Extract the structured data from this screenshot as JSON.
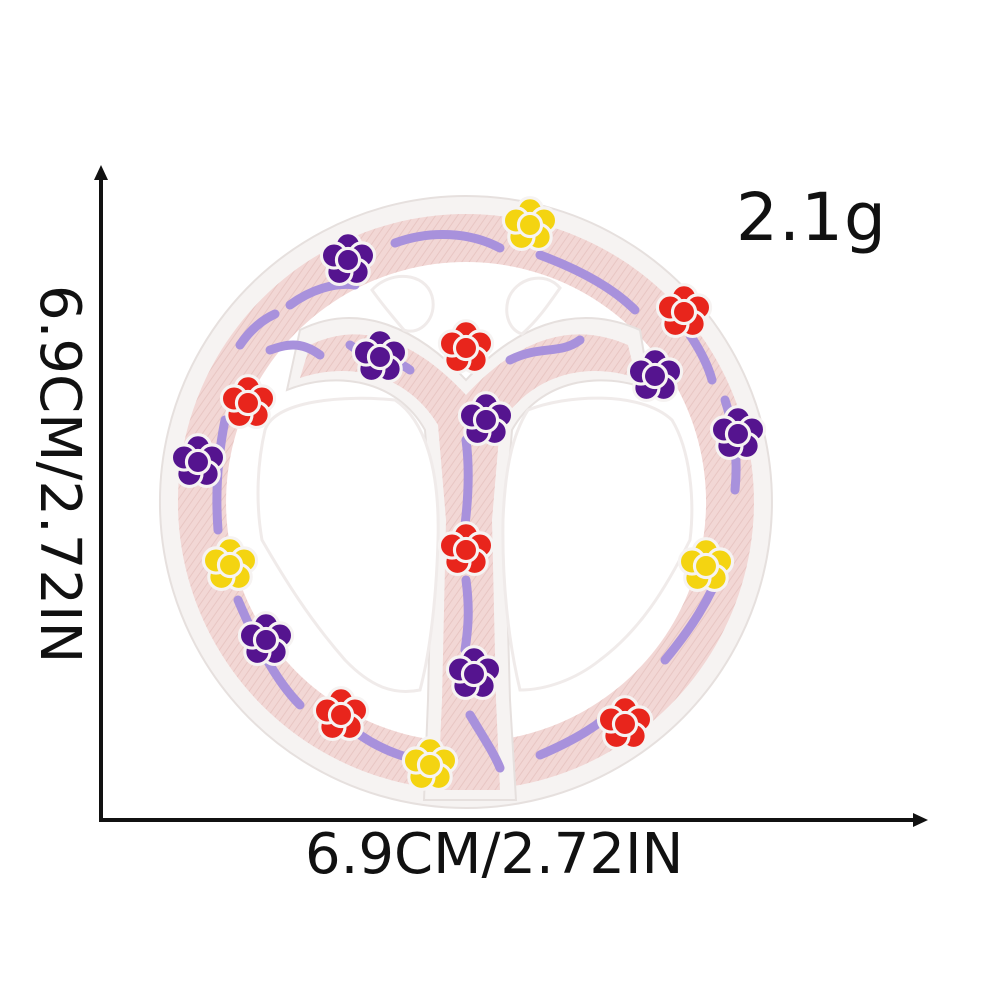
{
  "product_image": {
    "weight": "2.1g",
    "width_dimension": "6.9CM/2.72IN",
    "height_dimension": "6.9CM/2.72IN"
  },
  "colors": {
    "background": "#ffffff",
    "axis": "#111111",
    "patch_border": "#f5f2f1",
    "patch_fill": "#f2d9d7",
    "vine": "#a58fde",
    "flower_purple": "#55148f",
    "flower_red": "#e8251c",
    "flower_yellow": "#f4d411"
  }
}
